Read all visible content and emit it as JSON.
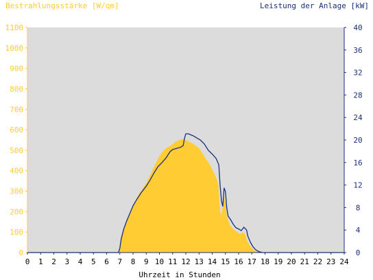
{
  "chart_data": {
    "type": "area",
    "left_axis_title": "Bestrahlungsstärke [W/qm]",
    "right_axis_title": "Leistung der Anlage [kW]",
    "xlabel": "Uhrzeit in Stunden",
    "xlim": [
      0,
      24
    ],
    "x_ticks": [
      "0",
      "1",
      "2",
      "3",
      "4",
      "5",
      "6",
      "7",
      "8",
      "9",
      "10",
      "11",
      "12",
      "13",
      "14",
      "15",
      "16",
      "17",
      "18",
      "19",
      "20",
      "21",
      "22",
      "23",
      "24"
    ],
    "y_left_lim": [
      0,
      1100
    ],
    "y_left_ticks": [
      "0",
      "100",
      "200",
      "300",
      "400",
      "500",
      "600",
      "700",
      "800",
      "900",
      "1000",
      "1100"
    ],
    "y_right_lim": [
      0,
      40
    ],
    "y_right_ticks": [
      "0",
      "4",
      "8",
      "12",
      "16",
      "20",
      "24",
      "28",
      "32",
      "36",
      "40"
    ],
    "grid": false,
    "colors": {
      "plot_background": "#dcdcdc",
      "irradiance": "#ffcc33",
      "power": "#1a2e7a",
      "left_axis": "#ffcc33",
      "right_axis": "#1a2e7a"
    },
    "series": [
      {
        "axis": "left",
        "x": [
          0,
          6.9,
          7.0,
          7.1,
          7.3,
          7.5,
          7.8,
          8.0,
          8.3,
          8.6,
          9.0,
          9.3,
          9.6,
          9.9,
          10.2,
          10.5,
          10.8,
          11.0,
          11.2,
          11.5,
          11.8,
          12.0,
          12.3,
          12.6,
          13.0,
          13.3,
          13.6,
          13.9,
          14.2,
          14.45,
          14.55,
          14.6,
          14.7,
          14.8,
          14.85,
          14.9,
          15.0,
          15.1,
          15.2,
          15.3,
          15.5,
          15.7,
          15.9,
          16.1,
          16.3,
          16.5,
          16.7,
          16.9,
          17.1,
          17.3,
          17.5,
          17.8,
          18.0,
          24
        ],
        "y": [
          0,
          0,
          20,
          60,
          110,
          150,
          200,
          230,
          270,
          300,
          340,
          380,
          420,
          460,
          490,
          510,
          520,
          530,
          540,
          550,
          555,
          550,
          540,
          530,
          510,
          480,
          450,
          420,
          380,
          340,
          250,
          200,
          180,
          230,
          280,
          270,
          250,
          180,
          160,
          140,
          120,
          110,
          100,
          90,
          100,
          90,
          50,
          30,
          15,
          8,
          3,
          0,
          0,
          0
        ]
      },
      {
        "axis": "right",
        "x": [
          0,
          6.9,
          7.0,
          7.1,
          7.3,
          7.5,
          7.8,
          8.0,
          8.3,
          8.6,
          9.0,
          9.3,
          9.6,
          9.9,
          10.2,
          10.5,
          10.8,
          11.0,
          11.3,
          11.6,
          11.8,
          11.9,
          12.0,
          12.2,
          12.4,
          12.6,
          12.8,
          13.1,
          13.4,
          13.7,
          14.0,
          14.3,
          14.5,
          14.6,
          14.7,
          14.8,
          14.85,
          14.9,
          15.0,
          15.1,
          15.2,
          15.4,
          15.6,
          15.8,
          16.0,
          16.2,
          16.4,
          16.6,
          16.7,
          16.9,
          17.1,
          17.3,
          17.5,
          17.8,
          18.0,
          24
        ],
        "y": [
          0,
          0,
          0.8,
          2.4,
          4.2,
          5.5,
          7.2,
          8.3,
          9.5,
          10.6,
          11.8,
          12.9,
          14.2,
          15.3,
          16.0,
          16.8,
          17.9,
          18.3,
          18.5,
          18.7,
          19.0,
          20.3,
          21.1,
          21.1,
          20.9,
          20.7,
          20.4,
          20.0,
          19.3,
          18.2,
          17.5,
          16.7,
          15.6,
          12.0,
          9.2,
          8.2,
          9.8,
          11.5,
          10.8,
          8.0,
          6.5,
          5.8,
          5.0,
          4.4,
          4.2,
          3.9,
          4.5,
          4.0,
          2.9,
          1.8,
          1.0,
          0.5,
          0.2,
          0,
          0,
          0
        ]
      }
    ]
  }
}
